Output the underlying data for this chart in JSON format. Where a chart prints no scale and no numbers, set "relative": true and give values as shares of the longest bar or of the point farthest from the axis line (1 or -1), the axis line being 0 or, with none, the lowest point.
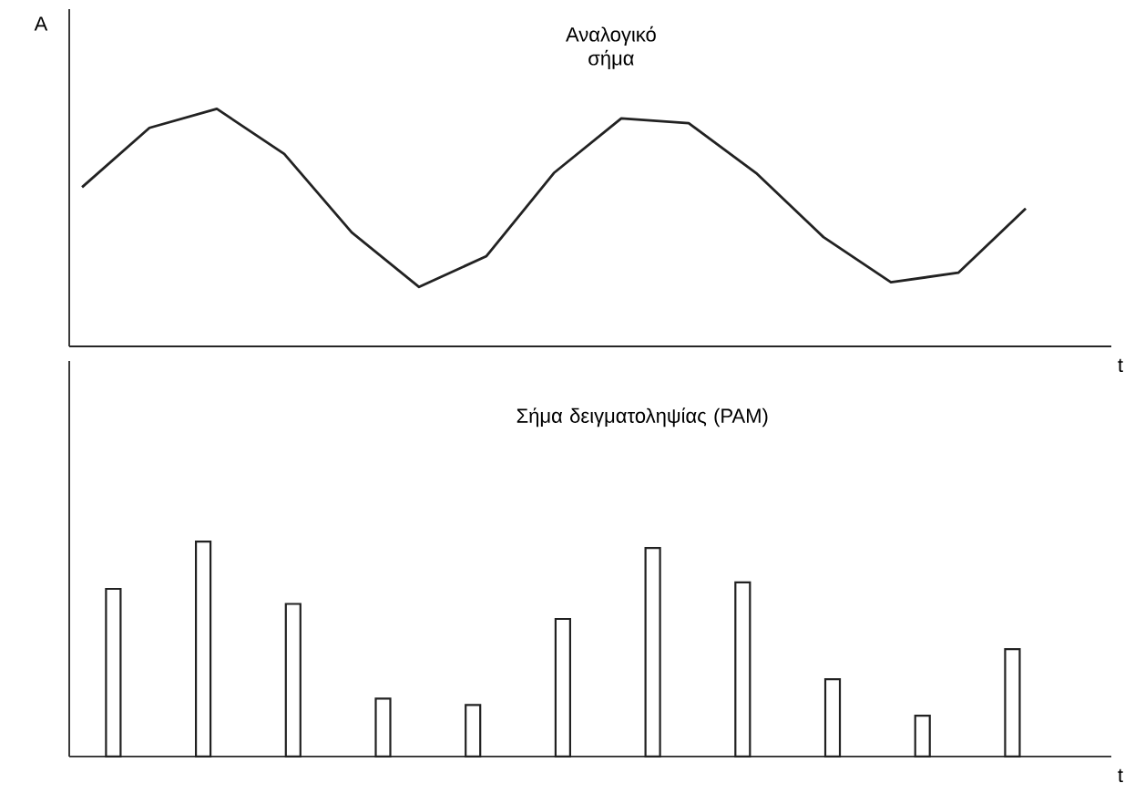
{
  "chart_data": [
    {
      "type": "line",
      "title": "Αναλογικό σήμα",
      "ylabel": "A",
      "xlabel": "t",
      "relative": true,
      "categories": [
        null,
        null,
        null,
        null,
        null,
        null,
        null,
        null,
        null,
        null,
        null,
        null,
        null,
        null,
        null
      ],
      "series": [
        {
          "color": "#222222",
          "values": [
            0.67,
            0.92,
            1.0,
            0.81,
            0.48,
            0.25,
            0.38,
            0.73,
            0.96,
            0.94,
            0.73,
            0.46,
            0.27,
            0.31,
            0.58
          ]
        }
      ],
      "marker": "none",
      "line_style": "solid"
    },
    {
      "type": "bar",
      "title": "Σήμα δειγματοληψίας (PAM)",
      "xlabel": "t",
      "relative": true,
      "categories": [
        null,
        null,
        null,
        null,
        null,
        null,
        null,
        null,
        null,
        null,
        null
      ],
      "series": [
        {
          "color": "#ffffff",
          "values": [
            0.78,
            1.0,
            0.71,
            0.27,
            0.24,
            0.64,
            0.97,
            0.81,
            0.36,
            0.19,
            0.5
          ]
        }
      ],
      "grid": false
    }
  ]
}
